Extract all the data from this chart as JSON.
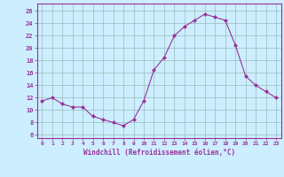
{
  "x": [
    0,
    1,
    2,
    3,
    4,
    5,
    6,
    7,
    8,
    9,
    10,
    11,
    12,
    13,
    14,
    15,
    16,
    17,
    18,
    19,
    20,
    21,
    22,
    23
  ],
  "y": [
    11.5,
    12.0,
    11.0,
    10.5,
    10.5,
    9.0,
    8.5,
    8.0,
    7.5,
    8.5,
    11.5,
    16.5,
    18.5,
    22.0,
    23.5,
    24.5,
    25.5,
    25.0,
    24.5,
    20.5,
    15.5,
    14.0,
    13.0,
    12.0
  ],
  "line_color": "#993399",
  "marker": "D",
  "marker_size": 2,
  "bg_color": "#cceeff",
  "grid_color": "#99bbbb",
  "xlabel": "Windchill (Refroidissement éolien,°C)",
  "xlabel_color": "#993399",
  "ylabel_ticks": [
    6,
    8,
    10,
    12,
    14,
    16,
    18,
    20,
    22,
    24,
    26
  ],
  "xlim": [
    -0.5,
    23.5
  ],
  "ylim": [
    5.5,
    27.2
  ],
  "xtick_labels": [
    "0",
    "1",
    "2",
    "3",
    "4",
    "5",
    "6",
    "7",
    "8",
    "9",
    "10",
    "11",
    "12",
    "13",
    "14",
    "15",
    "16",
    "17",
    "18",
    "19",
    "20",
    "21",
    "22",
    "23"
  ],
  "tick_color": "#993399"
}
